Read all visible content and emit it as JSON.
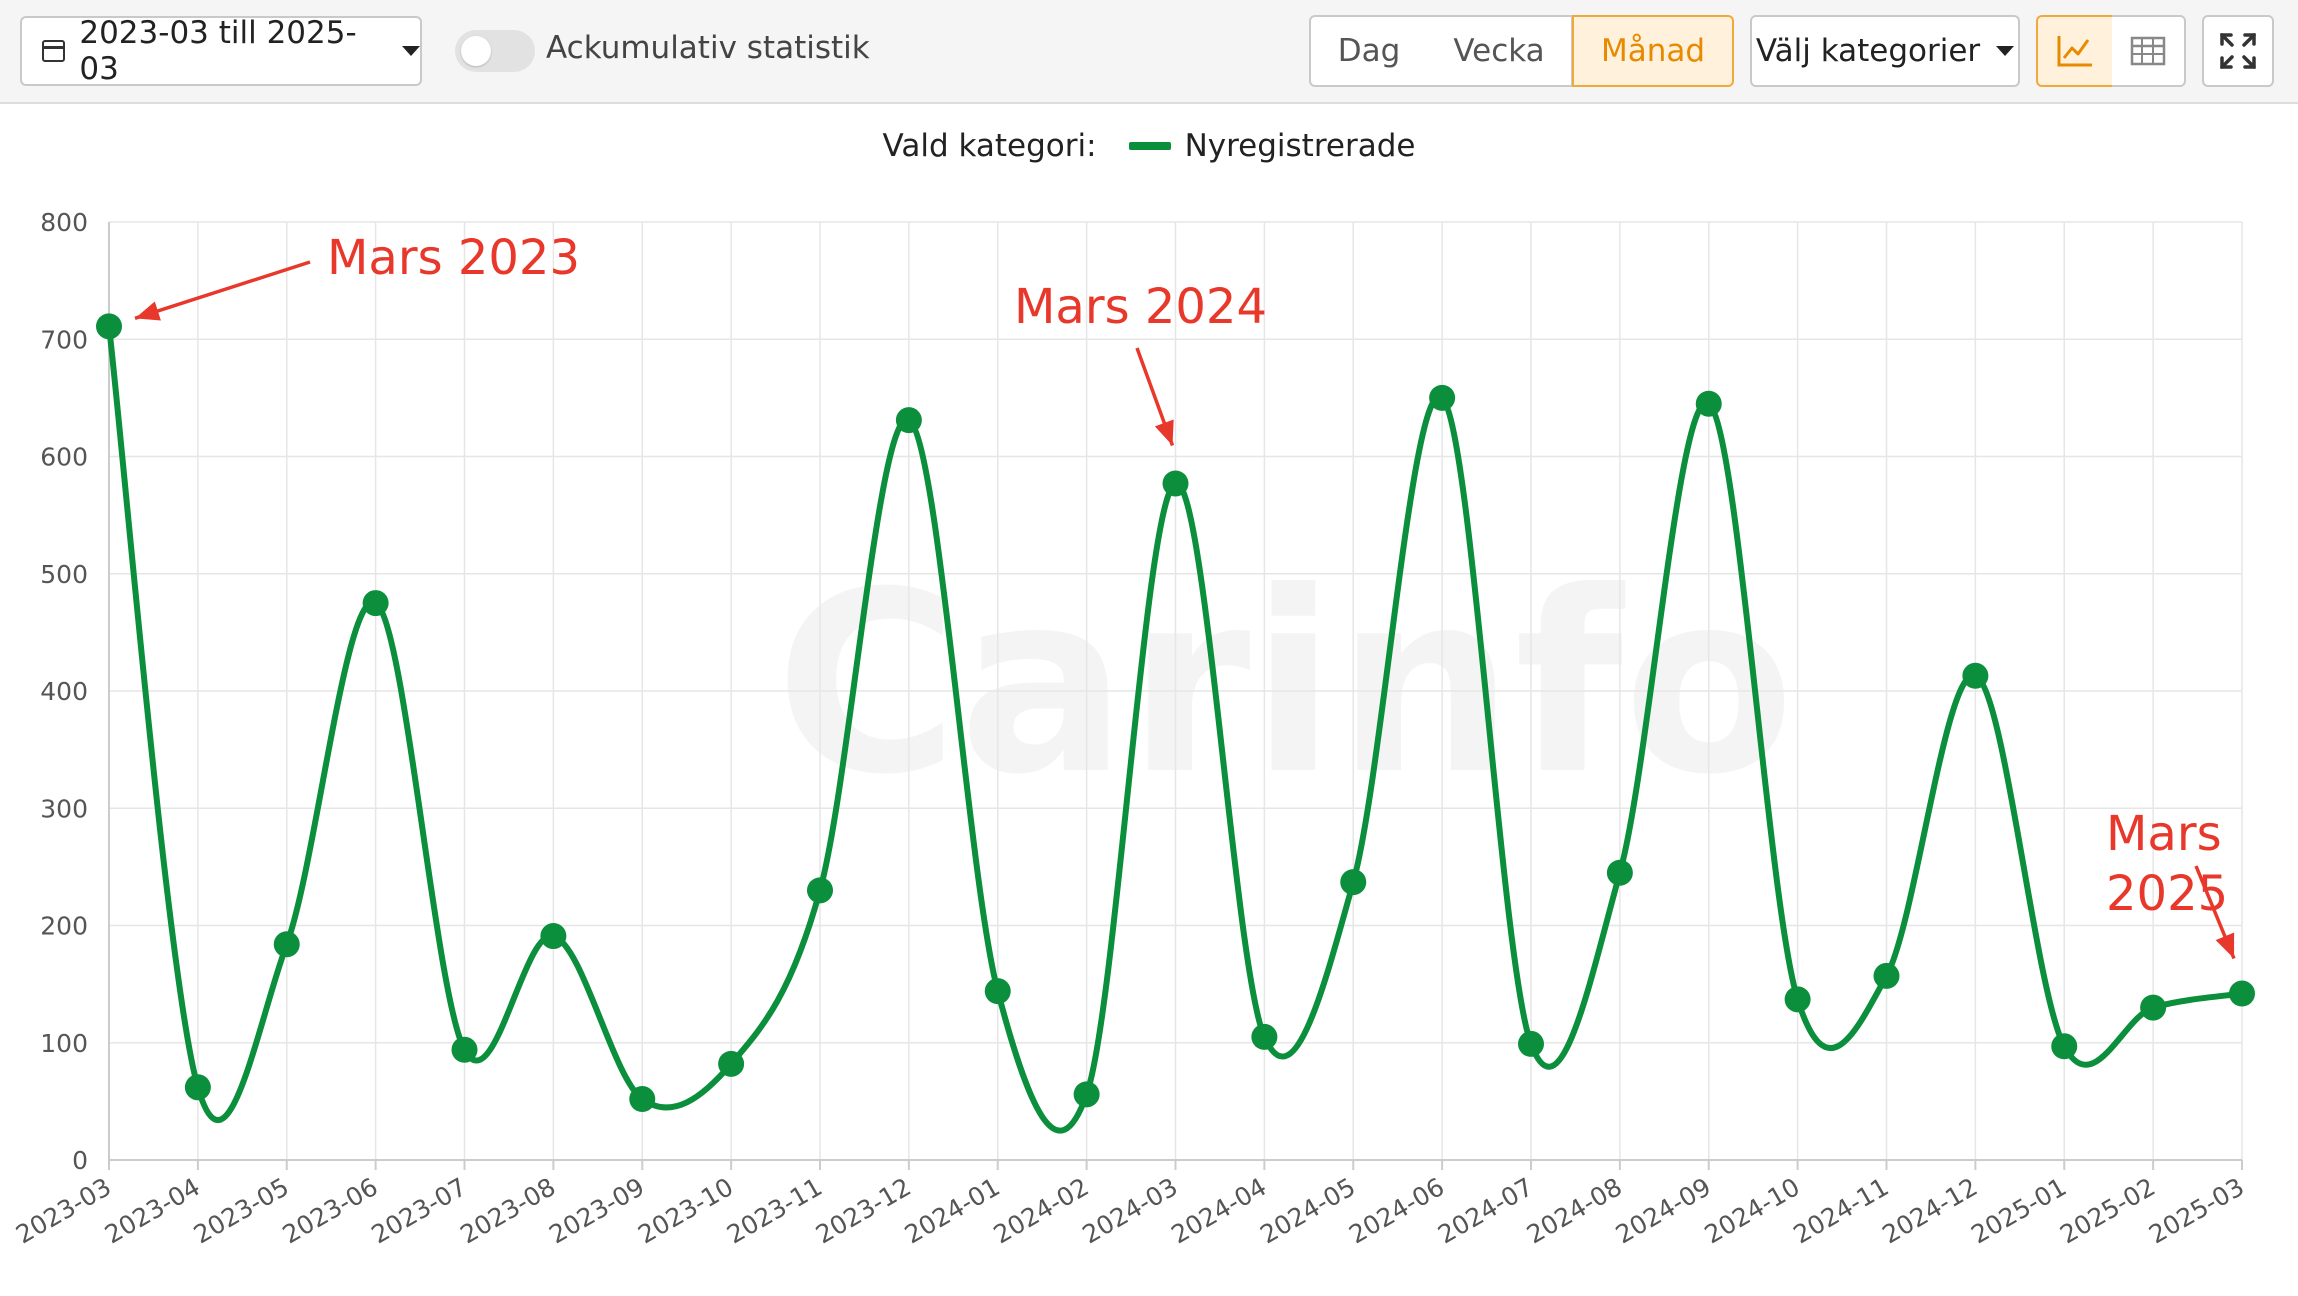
{
  "toolbar": {
    "date_range": "2023-03 till 2025-03",
    "cumulative_label": "Ackumulativ statistik",
    "period_buttons": [
      "Dag",
      "Vecka",
      "Månad"
    ],
    "active_period": "Månad",
    "category_button": "Välj kategorier",
    "icons": [
      "calendar-icon",
      "chart-view-icon",
      "table-view-icon",
      "fullscreen-icon"
    ],
    "accent_color": "#f2a93b"
  },
  "legend": {
    "prefix": "Vald kategori:",
    "series_name": "Nyregistrerade"
  },
  "watermark": "Carinfo",
  "chart_data": {
    "type": "line",
    "x": [
      "2023-03",
      "2023-04",
      "2023-05",
      "2023-06",
      "2023-07",
      "2023-08",
      "2023-09",
      "2023-10",
      "2023-11",
      "2023-12",
      "2024-01",
      "2024-02",
      "2024-03",
      "2024-04",
      "2024-05",
      "2024-06",
      "2024-07",
      "2024-08",
      "2024-09",
      "2024-10",
      "2024-11",
      "2024-12",
      "2025-01",
      "2025-02",
      "2025-03"
    ],
    "series": [
      {
        "name": "Nyregistrerade",
        "color": "#0b8f3c",
        "values": [
          711,
          62,
          184,
          475,
          94,
          191,
          52,
          82,
          230,
          631,
          144,
          56,
          577,
          105,
          237,
          650,
          99,
          245,
          645,
          137,
          157,
          413,
          97,
          130,
          142
        ]
      }
    ],
    "ylim": [
      0,
      800
    ],
    "yticks": [
      0,
      100,
      200,
      300,
      400,
      500,
      600,
      700,
      800
    ],
    "grid": true,
    "legend_position": "top-center",
    "annotations": [
      {
        "text": "Mars 2023",
        "x": "2023-03",
        "color": "#e8382b"
      },
      {
        "text": "Mars 2024",
        "x": "2024-03",
        "color": "#e8382b"
      },
      {
        "text": "Mars 2025",
        "x": "2025-03",
        "color": "#e8382b"
      }
    ]
  }
}
